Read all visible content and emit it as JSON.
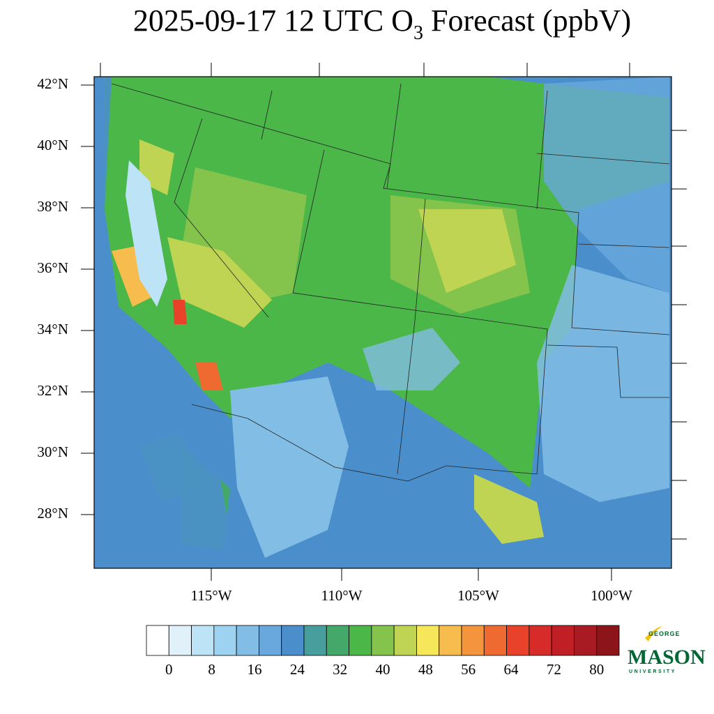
{
  "title": {
    "prefix": "2025-09-17 12 UTC O",
    "subscript": "3",
    "suffix": " Forecast (ppbV)"
  },
  "map": {
    "lat_labels": [
      "42°N",
      "40°N",
      "38°N",
      "36°N",
      "34°N",
      "32°N",
      "30°N",
      "28°N"
    ],
    "lon_labels": [
      "115°W",
      "110°W",
      "105°W",
      "100°W"
    ]
  },
  "colorbar": {
    "ticks": [
      0,
      8,
      16,
      24,
      32,
      40,
      48,
      56,
      64,
      72,
      80
    ],
    "colors": [
      "#ffffff",
      "#e1f1fa",
      "#bde3f6",
      "#9dd3f1",
      "#82bde5",
      "#68a8dc",
      "#4a8fcc",
      "#479e9c",
      "#44a86a",
      "#4bb748",
      "#84c44d",
      "#bfd452",
      "#f6e65a",
      "#f6bc4e",
      "#f4943c",
      "#ef6a30",
      "#e8432a",
      "#d62b28",
      "#c11f26",
      "#a81b22",
      "#8c1519"
    ]
  },
  "logo": {
    "top": "GEORGE",
    "name": "MASON",
    "bottom": "UNIVERSITY"
  }
}
